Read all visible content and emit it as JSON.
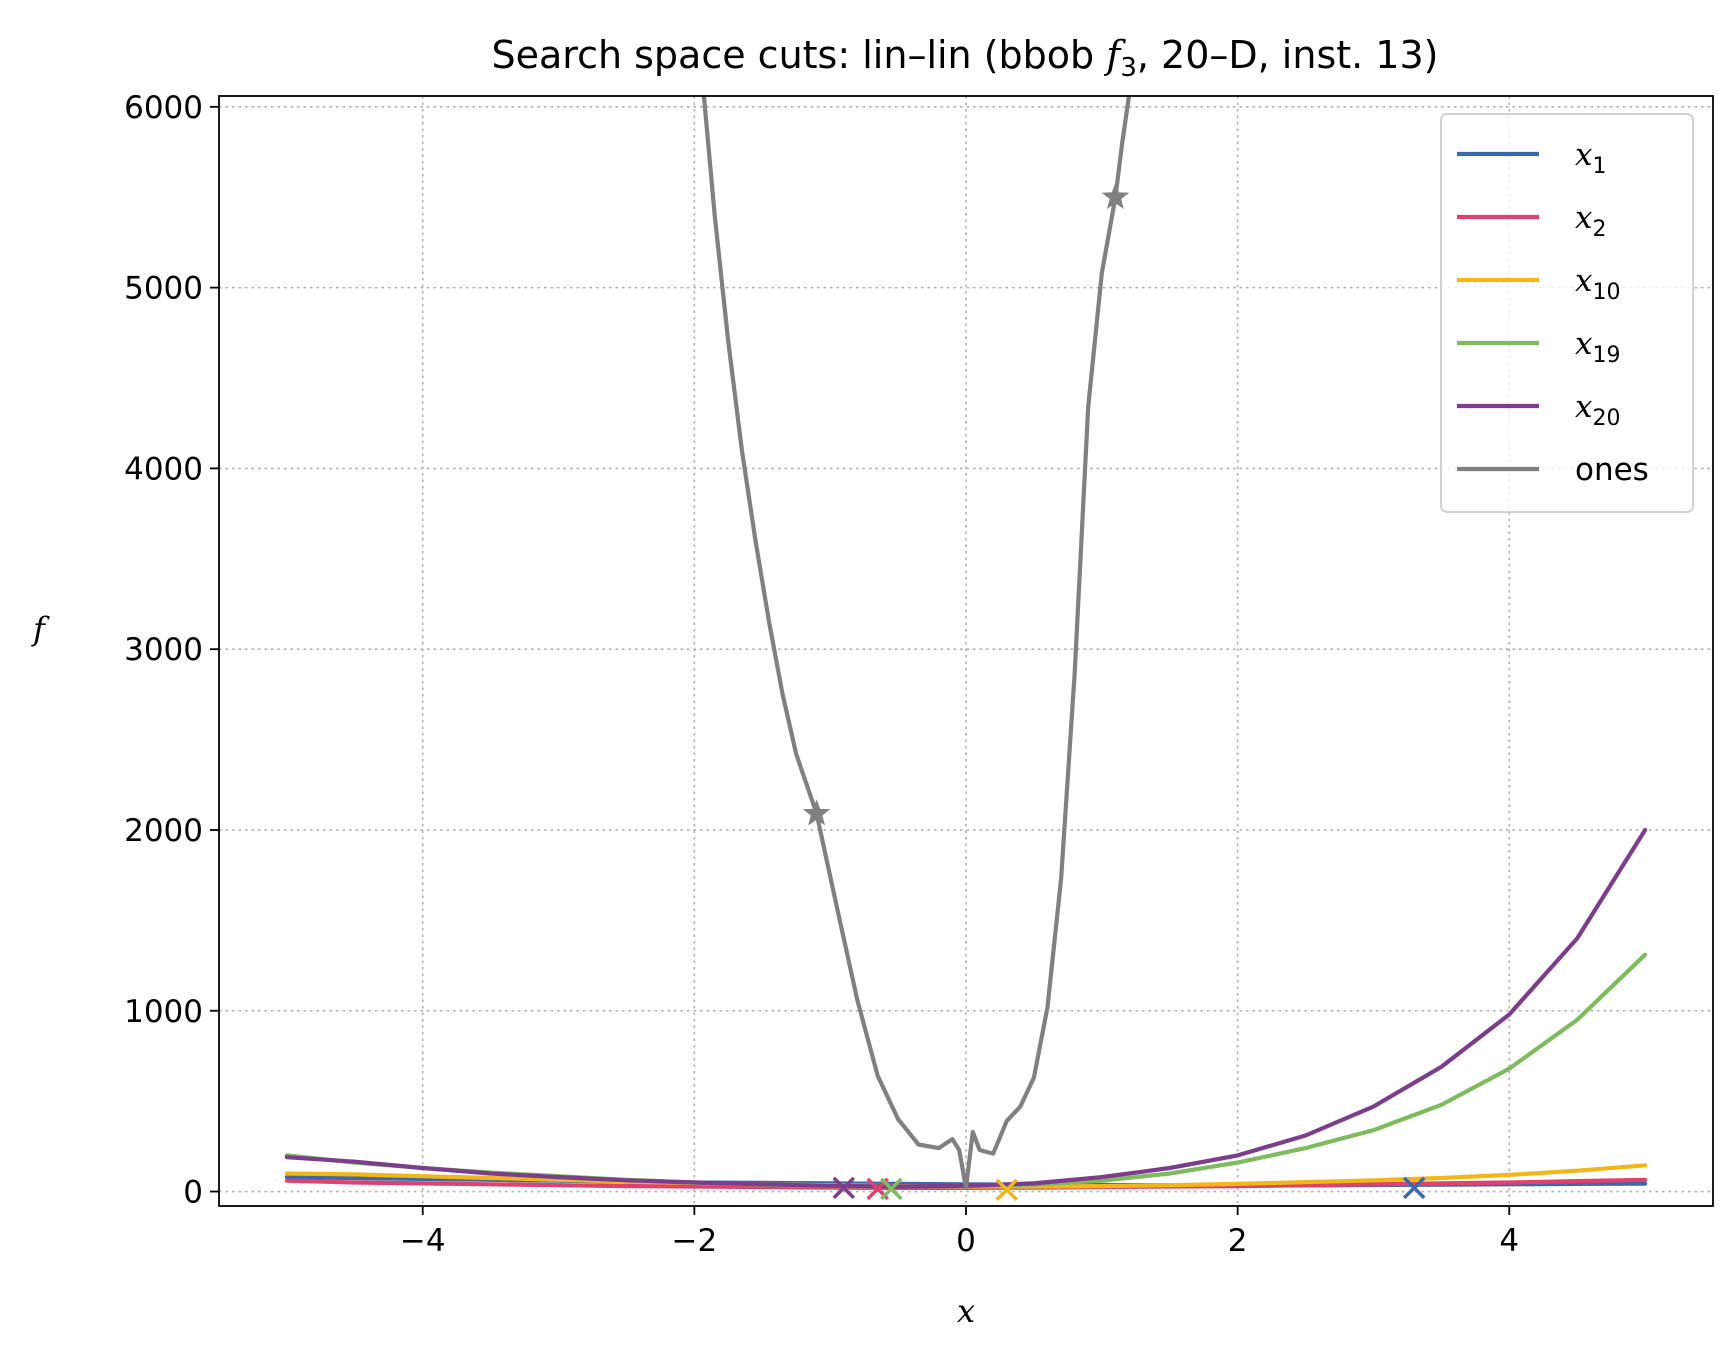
{
  "chart_data": {
    "type": "line",
    "title_prefix": "Search space cuts: lin–lin (bbob ",
    "title_func": "f",
    "title_func_sub": "3",
    "title_suffix": ", 20–D, inst. 13)",
    "xlabel": "x",
    "ylabel": "f",
    "xlim": [
      -5.5,
      5.5
    ],
    "ylim": [
      -80,
      6060
    ],
    "xticks": [
      -4,
      -2,
      0,
      2,
      4
    ],
    "xtick_labels": [
      "−4",
      "−2",
      "0",
      "2",
      "4"
    ],
    "yticks": [
      0,
      1000,
      2000,
      3000,
      4000,
      5000,
      6000
    ],
    "ytick_labels": [
      "0",
      "1000",
      "2000",
      "3000",
      "4000",
      "5000",
      "6000"
    ],
    "grid": true,
    "legend_position": "top-right",
    "series": [
      {
        "name": "x",
        "sub": "1",
        "color": "#3b68aa",
        "x": [
          -5,
          -4.5,
          -4,
          -3.5,
          -3,
          -2.5,
          -2,
          -1.5,
          -1,
          -0.5,
          0,
          0.5,
          1,
          1.5,
          2,
          2.5,
          3,
          3.5,
          4,
          4.5,
          5
        ],
        "y": [
          80,
          75,
          70,
          65,
          60,
          55,
          50,
          48,
          45,
          42,
          40,
          38,
          36,
          34,
          33,
          34,
          36,
          38,
          40,
          42,
          44
        ],
        "marker_x": 3.3,
        "marker_y": 20
      },
      {
        "name": "x",
        "sub": "2",
        "color": "#e0426f",
        "x": [
          -5,
          -4.5,
          -4,
          -3.5,
          -3,
          -2.5,
          -2,
          -1.5,
          -1,
          -0.5,
          0,
          0.5,
          1,
          1.5,
          2,
          2.5,
          3,
          3.5,
          4,
          4.5,
          5
        ],
        "y": [
          60,
          50,
          45,
          40,
          35,
          30,
          28,
          25,
          22,
          20,
          20,
          22,
          25,
          28,
          30,
          35,
          40,
          45,
          50,
          58,
          65
        ],
        "marker_x": -0.65,
        "marker_y": 15
      },
      {
        "name": "x",
        "sub": "10",
        "color": "#f1b719",
        "x": [
          -5,
          -4.5,
          -4,
          -3.5,
          -3,
          -2.5,
          -2,
          -1.5,
          -1,
          -0.5,
          0,
          0.5,
          1,
          1.5,
          2,
          2.5,
          3,
          3.5,
          4,
          4.5,
          5
        ],
        "y": [
          100,
          95,
          85,
          75,
          65,
          55,
          48,
          40,
          35,
          30,
          28,
          28,
          30,
          35,
          42,
          52,
          62,
          75,
          92,
          115,
          145
        ],
        "marker_x": 0.3,
        "marker_y": 10
      },
      {
        "name": "x",
        "sub": "19",
        "color": "#7ebb5e",
        "x": [
          -5,
          -4.5,
          -4,
          -3.5,
          -3,
          -2.5,
          -2,
          -1.5,
          -1,
          -0.5,
          0,
          0.5,
          1,
          1.5,
          2,
          2.5,
          3,
          3.5,
          4,
          4.5,
          5
        ],
        "y": [
          200,
          160,
          130,
          105,
          85,
          65,
          50,
          38,
          30,
          28,
          30,
          38,
          60,
          100,
          160,
          240,
          340,
          480,
          680,
          950,
          1310
        ],
        "marker_x": -0.55,
        "marker_y": 15
      },
      {
        "name": "x",
        "sub": "20",
        "color": "#7c3d8c",
        "x": [
          -5,
          -4.5,
          -4,
          -3.5,
          -3,
          -2.5,
          -2,
          -1.5,
          -1,
          -0.5,
          0,
          0.5,
          1,
          1.5,
          2,
          2.5,
          3,
          3.5,
          4,
          4.5,
          5
        ],
        "y": [
          190,
          165,
          130,
          100,
          80,
          62,
          50,
          40,
          32,
          28,
          32,
          45,
          80,
          130,
          200,
          310,
          470,
          690,
          980,
          1400,
          2000
        ],
        "marker_x": -0.9,
        "marker_y": 20
      },
      {
        "name": "ones",
        "sub": "",
        "color": "#808080",
        "x": [
          -1.93,
          -1.85,
          -1.75,
          -1.65,
          -1.55,
          -1.45,
          -1.35,
          -1.25,
          -1.1,
          -0.95,
          -0.8,
          -0.65,
          -0.5,
          -0.35,
          -0.2,
          -0.1,
          -0.05,
          0,
          0.05,
          0.1,
          0.2,
          0.3,
          0.4,
          0.5,
          0.6,
          0.7,
          0.8,
          0.9,
          1.0,
          1.1,
          1.15,
          1.2
        ],
        "y": [
          6060,
          5400,
          4700,
          4100,
          3600,
          3150,
          2750,
          2420,
          2090,
          1570,
          1060,
          640,
          400,
          260,
          240,
          290,
          230,
          20,
          330,
          230,
          210,
          390,
          470,
          630,
          1020,
          1730,
          2870,
          4340,
          5080,
          5500,
          5800,
          6060
        ],
        "marker_x": [
          -1.1,
          1.1
        ],
        "marker_y": [
          2090,
          5500
        ]
      }
    ]
  }
}
